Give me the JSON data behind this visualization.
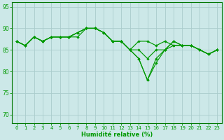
{
  "xlabel": "Humidité relative (%)",
  "bg_color": "#cce8e8",
  "grid_color": "#aacccc",
  "line_color": "#009900",
  "ylim": [
    68,
    96
  ],
  "xlim": [
    -0.5,
    23.5
  ],
  "yticks": [
    70,
    75,
    80,
    85,
    90,
    95
  ],
  "xtick_labels": [
    "0",
    "1",
    "2",
    "3",
    "4",
    "5",
    "6",
    "7",
    "8",
    "9",
    "10",
    "11",
    "12",
    "13",
    "14",
    "15",
    "16",
    "17",
    "18",
    "19",
    "20",
    "21",
    "22",
    "23"
  ],
  "series1": [
    87,
    86,
    88,
    87,
    88,
    88,
    88,
    88,
    90,
    90,
    89,
    87,
    87,
    85,
    87,
    87,
    86,
    87,
    86,
    86,
    86,
    85,
    84,
    85
  ],
  "series2": [
    87,
    86,
    88,
    87,
    88,
    88,
    88,
    89,
    90,
    90,
    89,
    87,
    87,
    85,
    85,
    83,
    85,
    85,
    86,
    86,
    86,
    85,
    84,
    85
  ],
  "series3": [
    87,
    86,
    88,
    87,
    88,
    88,
    88,
    89,
    90,
    90,
    89,
    87,
    87,
    85,
    83,
    78,
    83,
    85,
    87,
    86,
    86,
    85,
    84,
    85
  ],
  "series4": [
    87,
    86,
    88,
    87,
    88,
    88,
    88,
    89,
    90,
    90,
    89,
    87,
    87,
    85,
    83,
    78,
    82,
    85,
    87,
    86,
    86,
    85,
    84,
    85
  ]
}
